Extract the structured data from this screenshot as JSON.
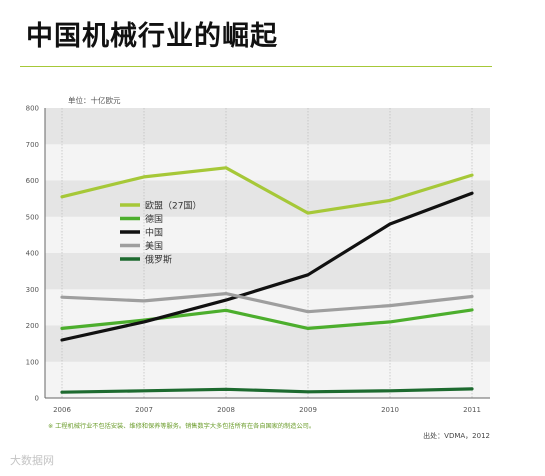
{
  "page": {
    "title": "中国机械行业的崛起",
    "watermark": "大数据网"
  },
  "colors": {
    "accent": "#a6c838",
    "band": "#e5e5e5",
    "grid": "#bdbdbd"
  },
  "chart_data": {
    "type": "line",
    "unit_label": "单位：十亿欧元",
    "x": [
      "2006",
      "2007",
      "2008",
      "2009",
      "2010",
      "2011"
    ],
    "ylim": [
      0,
      800
    ],
    "yticks": [
      "0",
      "100",
      "200",
      "300",
      "400",
      "500",
      "600",
      "700",
      "800"
    ],
    "grid": true,
    "legend_position": "left-middle",
    "series": [
      {
        "name": "欧盟（27国）",
        "color": "#a6c838",
        "values": [
          555,
          610,
          635,
          510,
          545,
          615
        ]
      },
      {
        "name": "德国",
        "color": "#4cae2d",
        "values": [
          192,
          215,
          242,
          192,
          210,
          243
        ]
      },
      {
        "name": "中国",
        "color": "#111111",
        "values": [
          160,
          210,
          270,
          340,
          480,
          565
        ]
      },
      {
        "name": "美国",
        "color": "#9e9e9e",
        "values": [
          278,
          268,
          288,
          238,
          255,
          280
        ]
      },
      {
        "name": "俄罗斯",
        "color": "#1d6a2f",
        "values": [
          16,
          20,
          24,
          17,
          20,
          25
        ]
      }
    ],
    "footnote": "※ 工程机械行业不包括安装、维修和保养等服务。销售数字大多包括所有在各自国家的制造公司。",
    "source": "出处：VDMA，2012"
  }
}
